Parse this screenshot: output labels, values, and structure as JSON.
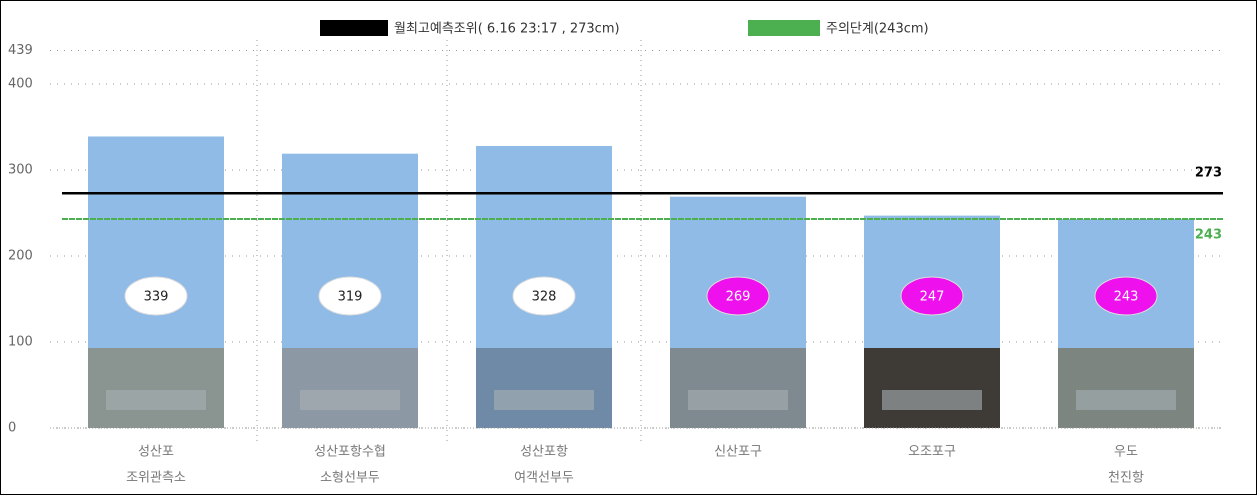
{
  "chart_data": {
    "type": "bar",
    "categories": [
      [
        "성산포",
        "조위관측소"
      ],
      [
        "성산포항수협",
        "소형선부두"
      ],
      [
        "성산포항",
        "여객선부두"
      ],
      [
        "신산포구"
      ],
      [
        "오조포구"
      ],
      [
        "우도",
        "천진항"
      ]
    ],
    "values": [
      339,
      319,
      328,
      269,
      247,
      243
    ],
    "color": "#8fbbe6",
    "label_colors": [
      "#ffffff",
      "#ffffff",
      "#ffffff",
      "#ee11ee",
      "#ee11ee",
      "#ee11ee"
    ],
    "label_text_colors": [
      "#222222",
      "#222222",
      "#222222",
      "#ffffff",
      "#ffffff",
      "#ffffff"
    ],
    "reference_lines": [
      {
        "name": "월최고예측조위( 6.16  23:17 , 273cm)",
        "value": 273,
        "color": "#000000"
      },
      {
        "name": "주의단계(243cm)",
        "value": 243,
        "color": "#4caf50"
      }
    ],
    "ylim": [
      0,
      439
    ],
    "yticks": [
      0,
      100,
      200,
      300,
      400,
      439
    ],
    "grid": true
  }
}
